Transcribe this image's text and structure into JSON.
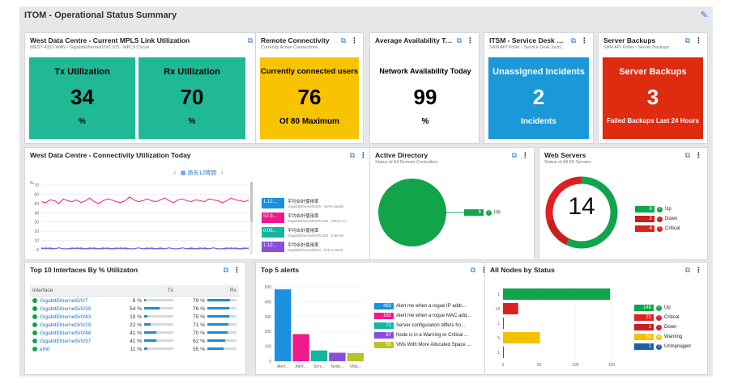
{
  "dashboard": {
    "title": "ITOM - Operational Status Summary"
  },
  "mpls": {
    "title": "West Data Centre - Current MPLS Link Utilization",
    "subtitle": "WEST-4331-WAN › GigabitEthernet0/0/0.103 · MPLS Circuit",
    "tx": {
      "label": "Tx Utilization",
      "value": "34",
      "unit": "%"
    },
    "rx": {
      "label": "Rx Utilization",
      "value": "70",
      "unit": "%"
    }
  },
  "remote": {
    "title": "Remote Connectivity",
    "subtitle": "Currently Active Connections",
    "label": "Currently connected users",
    "value": "76",
    "footer": "Of 80 Maximum"
  },
  "availability": {
    "title": "Average Availability Today",
    "label": "Network Availability Today",
    "value": "99",
    "unit": "%"
  },
  "itsm": {
    "title": "ITSM - Service Desk St...",
    "subtitle": "SAM API Poller › Service Desk Incid...",
    "label": "Unassigned Incidents",
    "value": "2",
    "footer": "Incidents"
  },
  "backups": {
    "title": "Server Backups",
    "subtitle": "SAM API Poller › Server Backups",
    "label": "Server Backups",
    "value": "3",
    "footer": "Failed Backups Last 24 Hours"
  },
  "connectivity": {
    "title": "West Data Centre - Connectivity Utilization Today",
    "nav_label": "過去12時間",
    "y_unit": "%",
    "legend": [
      {
        "badge": "1.12...",
        "color": "#1b8fe0",
        "label": "平均合計使用率",
        "sub": "GigabitEthernet0/0/0 · WAN Uplink"
      },
      {
        "badge": "52.9...",
        "color": "#ee1a8c",
        "label": "平均合計使用率",
        "sub": "GigabitEthernet0/0/0.103 · MPLS Ci..."
      },
      {
        "badge": "0.06...",
        "color": "#14b5a0",
        "label": "平均合計使用率",
        "sub": "GigabitEthernet0/0/0.203 · Internet"
      },
      {
        "badge": "1.12...",
        "color": "#8a4fd8",
        "label": "平均合計使用率",
        "sub": "GigabitEthernet0/0/1 · link to West"
      }
    ]
  },
  "active_directory": {
    "title": "Active Directory",
    "subtitle": "Status of All Domain Controllers",
    "count": "6",
    "status": "Up"
  },
  "web_servers": {
    "title": "Web Servers",
    "subtitle": "Status of All IIS Servers",
    "total": "14",
    "rows": [
      {
        "count": "8",
        "label": "Up",
        "color": "#12a44a"
      },
      {
        "count": "2",
        "label": "Down",
        "color": "#c81e1e"
      },
      {
        "count": "4",
        "label": "Critical",
        "color": "#e02020"
      }
    ]
  },
  "interfaces": {
    "title": "Top 10 Interfaces By % Utilizaton",
    "headers": [
      "Interface",
      "Tx",
      "Rx"
    ],
    "rows": [
      {
        "name": "GigabitEthernet5/0/7",
        "tx": "6 %",
        "rx": "79 %",
        "tx_pct": 6,
        "rx_pct": 79
      },
      {
        "name": "GigabitEthernet5/0/39",
        "tx": "54 %",
        "rx": "76 %",
        "tx_pct": 54,
        "rx_pct": 76
      },
      {
        "name": "GigabitEthernet5/0/43",
        "tx": "10 %",
        "rx": "75 %",
        "tx_pct": 10,
        "rx_pct": 75
      },
      {
        "name": "GigabitEthernet3/0/29",
        "tx": "22 %",
        "rx": "71 %",
        "tx_pct": 22,
        "rx_pct": 71
      },
      {
        "name": "GigabitEthernet5/0/48",
        "tx": "41 %",
        "rx": "70 %",
        "tx_pct": 41,
        "rx_pct": 70
      },
      {
        "name": "GigabitEthernet5/0/37",
        "tx": "41 %",
        "rx": "62 %",
        "tx_pct": 41,
        "rx_pct": 62
      },
      {
        "name": "eth0",
        "tx": "11 %",
        "rx": "55 %",
        "tx_pct": 11,
        "rx_pct": 55
      }
    ]
  },
  "alerts": {
    "title": "Top 5 alerts",
    "legend": [
      {
        "count": "483",
        "color": "#1b8fe0",
        "label": "Alert me when a rogue IP addr..."
      },
      {
        "count": "182",
        "color": "#ee1a8c",
        "label": "Alert me when a rogue MAC add..."
      },
      {
        "count": "72",
        "color": "#14b5a0",
        "label": "Server configuration differs fro..."
      },
      {
        "count": "57",
        "color": "#8a4fd8",
        "label": "Node is in a Warning or Critical ..."
      },
      {
        "count": "55",
        "color": "#b6c42a",
        "label": "VMs With More Allocated Space ..."
      }
    ]
  },
  "nodes": {
    "title": "All Nodes by Status",
    "legend": [
      {
        "count": "148",
        "label": "Up",
        "color": "#12a44a"
      },
      {
        "count": "21",
        "label": "Critical",
        "color": "#e02020"
      },
      {
        "count": "1",
        "label": "Down",
        "color": "#c81e1e"
      },
      {
        "count": "51",
        "label": "Warning",
        "color": "#f2c200"
      },
      {
        "count": "1",
        "label": "Unmanaged",
        "color": "#1b5fa8"
      }
    ]
  },
  "chart_data": [
    {
      "type": "line",
      "title": "West Data Centre - Connectivity Utilization Today",
      "ylabel": "%",
      "ylim": [
        0,
        70
      ],
      "yticks": [
        "70",
        "60",
        "50",
        "40",
        "30",
        "20",
        "10",
        "0"
      ],
      "series": [
        {
          "name": "GigabitEthernet0/0/0.103 · MPLS Ci...",
          "color": "#ee1a8c",
          "values": [
            52,
            51,
            54,
            53,
            50,
            55,
            53,
            52,
            54,
            51,
            53,
            56,
            52,
            50,
            53,
            55,
            54,
            52,
            51,
            53,
            57,
            54,
            52,
            53,
            55,
            53,
            52,
            54,
            56,
            53,
            51,
            54,
            55,
            53,
            52,
            54,
            53,
            52,
            55,
            54,
            53,
            51,
            53,
            56,
            54,
            53,
            52,
            54
          ]
        },
        {
          "name": "GigabitEthernet0/0/0 · WAN Uplink",
          "color": "#1b8fe0",
          "values": [
            2,
            1,
            2,
            1,
            2,
            1,
            1,
            2,
            1,
            2,
            1,
            1,
            2,
            1,
            2,
            1,
            1,
            2,
            1,
            2,
            1,
            1,
            2,
            1,
            2,
            1,
            1,
            2,
            1,
            2,
            1,
            1,
            2,
            1,
            2,
            1,
            1,
            2,
            1,
            2,
            1,
            1,
            2,
            1,
            2,
            1,
            1,
            2
          ]
        },
        {
          "name": "GigabitEthernet0/0/1 · link to West",
          "color": "#8a4fd8",
          "values": [
            1,
            2,
            1,
            1,
            2,
            1,
            1,
            1,
            2,
            1,
            1,
            2,
            1,
            1,
            1,
            2,
            1,
            1,
            2,
            1,
            1,
            1,
            2,
            1,
            1,
            2,
            1,
            1,
            1,
            2,
            1,
            1,
            2,
            1,
            1,
            1,
            2,
            1,
            1,
            2,
            1,
            1,
            1,
            2,
            1,
            1,
            2,
            1
          ]
        }
      ]
    },
    {
      "type": "bar",
      "title": "Top 5 alerts",
      "categories": [
        "Alert...",
        "Alert...",
        "Serv...",
        "Node...",
        "VMs..."
      ],
      "values": [
        483,
        182,
        72,
        57,
        55
      ],
      "colors": [
        "#1b8fe0",
        "#ee1a8c",
        "#14b5a0",
        "#8a4fd8",
        "#b6c42a"
      ],
      "yticks": [
        "500",
        "400",
        "300",
        "200",
        "100",
        "0"
      ],
      "ylim": [
        0,
        500
      ]
    },
    {
      "type": "bar",
      "orientation": "horizontal",
      "title": "All Nodes by Status",
      "categories": [
        "1",
        "14",
        "1",
        "5",
        "1"
      ],
      "values": [
        148,
        21,
        1,
        51,
        1
      ],
      "colors": [
        "#12a44a",
        "#e02020",
        "#c81e1e",
        "#f2c200",
        "#1b5fa8"
      ],
      "xticks": [
        "0",
        "50",
        "100",
        "150"
      ],
      "xlim": [
        0,
        150
      ]
    },
    {
      "type": "pie",
      "title": "Active Directory",
      "categories": [
        "Up"
      ],
      "values": [
        6
      ],
      "colors": [
        "#12a44a"
      ]
    },
    {
      "type": "pie",
      "title": "Web Servers",
      "categories": [
        "Up",
        "Down",
        "Critical"
      ],
      "values": [
        8,
        2,
        4
      ],
      "colors": [
        "#12a44a",
        "#c81e1e",
        "#e02020"
      ]
    }
  ]
}
